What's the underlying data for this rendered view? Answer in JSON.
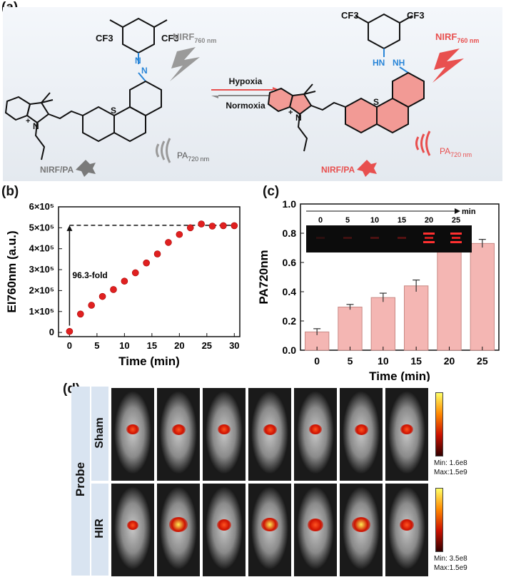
{
  "panel_labels": {
    "a": "(a)",
    "b": "(b)",
    "c": "(c)",
    "d": "(d)"
  },
  "panel_a": {
    "left": {
      "cf3_1": "CF3",
      "cf3_2": "CF3",
      "nirf": "NIRF",
      "nirf_sub": "760 nm",
      "pa": "PA",
      "pa_sub": "720 nm",
      "badge": "NIRF/PA",
      "atom_s": "S",
      "atom_n": "N",
      "atom_nplus": "+",
      "azo_n1": "N",
      "azo_n2": "N"
    },
    "right": {
      "cf3_1": "CF3",
      "cf3_2": "CF3",
      "nirf": "NIRF",
      "nirf_sub": "760 nm",
      "pa": "PA",
      "pa_sub": "720 nm",
      "badge": "NIRF/PA",
      "atom_s": "S",
      "atom_n": "N",
      "atom_nplus": "+",
      "hn": "HN",
      "nh": "NH"
    },
    "arrow_top": "Hypoxia",
    "arrow_bottom": "Normoxia",
    "colors": {
      "gray": "#8a8a8a",
      "red": "#e8504f",
      "blue": "#2a86d8"
    }
  },
  "panel_b": {
    "fold_label": "96.3-fold"
  },
  "panel_c": {
    "inset_axis_label": "min",
    "inset_ticks": [
      "0",
      "5",
      "10",
      "15",
      "20",
      "25"
    ]
  },
  "panel_d": {
    "probe_label": "Probe",
    "row1_label": "Sham",
    "row2_label": "HIR",
    "row1_min": "Min: 1.6e8",
    "row1_max": "Max:1.5e9",
    "row2_min": "Min: 3.5e8",
    "row2_max": "Max:1.5e9",
    "row1_intensity": [
      0.45,
      0.5,
      0.45,
      0.5,
      0.45,
      0.5,
      0.45
    ],
    "row2_intensity": [
      0.3,
      0.95,
      0.6,
      0.8,
      0.7,
      1.0,
      0.55
    ]
  },
  "chart_data": [
    {
      "type": "scatter",
      "xlabel": "Time (min)",
      "ylabel": "EI760nm (a.u.)",
      "xlim": [
        -2,
        31
      ],
      "ylim": [
        -20000,
        600000
      ],
      "x_ticks": [
        0,
        5,
        10,
        15,
        20,
        25,
        30
      ],
      "y_ticks": [
        0,
        100000,
        200000,
        300000,
        400000,
        500000,
        600000
      ],
      "y_tick_labels": [
        "0",
        "1×10⁵",
        "2×10⁵",
        "3×10⁵",
        "4×10⁵",
        "5×10⁵",
        "6×10⁵"
      ],
      "x": [
        0,
        2,
        4,
        6,
        8,
        10,
        12,
        14,
        16,
        18,
        20,
        22,
        24,
        26,
        28,
        30
      ],
      "y": [
        5000,
        88000,
        130000,
        172000,
        205000,
        245000,
        285000,
        332000,
        375000,
        430000,
        468000,
        500000,
        518000,
        508000,
        510000,
        510000
      ],
      "plateau": 512000,
      "annotation": "96.3-fold",
      "color": "#e02020"
    },
    {
      "type": "bar",
      "xlabel": "Time (min)",
      "ylabel": "PA720nm",
      "categories": [
        "0",
        "5",
        "10",
        "15",
        "20",
        "25"
      ],
      "values": [
        0.125,
        0.295,
        0.36,
        0.44,
        0.7,
        0.73
      ],
      "errors": [
        0.022,
        0.018,
        0.03,
        0.04,
        0.018,
        0.028
      ],
      "ylim": [
        0,
        1.0
      ],
      "y_ticks": [
        0.0,
        0.2,
        0.4,
        0.6,
        0.8,
        1.0
      ],
      "y_tick_labels": [
        "0.0",
        "0.2",
        "0.4",
        "0.6",
        "0.8",
        "1.0"
      ],
      "color": "#f4b6b3"
    }
  ]
}
